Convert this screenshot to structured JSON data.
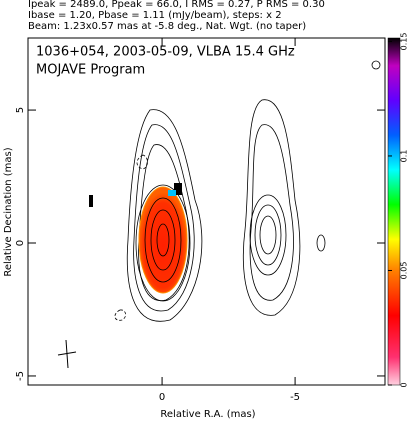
{
  "chart_data": {
    "type": "image",
    "header": [
      "Ipeak = 2489.0, Ppeak = 66.0, I RMS = 0.27, P RMS = 0.30",
      "Ibase = 1.20, Pbase = 1.11 (mJy/beam), steps: x 2",
      "Beam: 1.23x0.57 mas at -5.8 deg., Nat. Wgt. (no taper)"
    ],
    "title": "1036+054, 2003-05-09, VLBA 15.4 GHz",
    "subtitle": "MOJAVE Program",
    "x_label": "Relative R.A. (mas)",
    "y_label": "Relative Decination (mas)",
    "xlim": [
      5.04,
      -8.38
    ],
    "xticks": [
      0,
      -5
    ],
    "ylim": [
      -5.34,
      7.71
    ],
    "yticks": [
      -5,
      0,
      5
    ],
    "clim": [
      0,
      0.1515
    ],
    "cticks": [
      0,
      0.05,
      0.1,
      0.15
    ]
  }
}
